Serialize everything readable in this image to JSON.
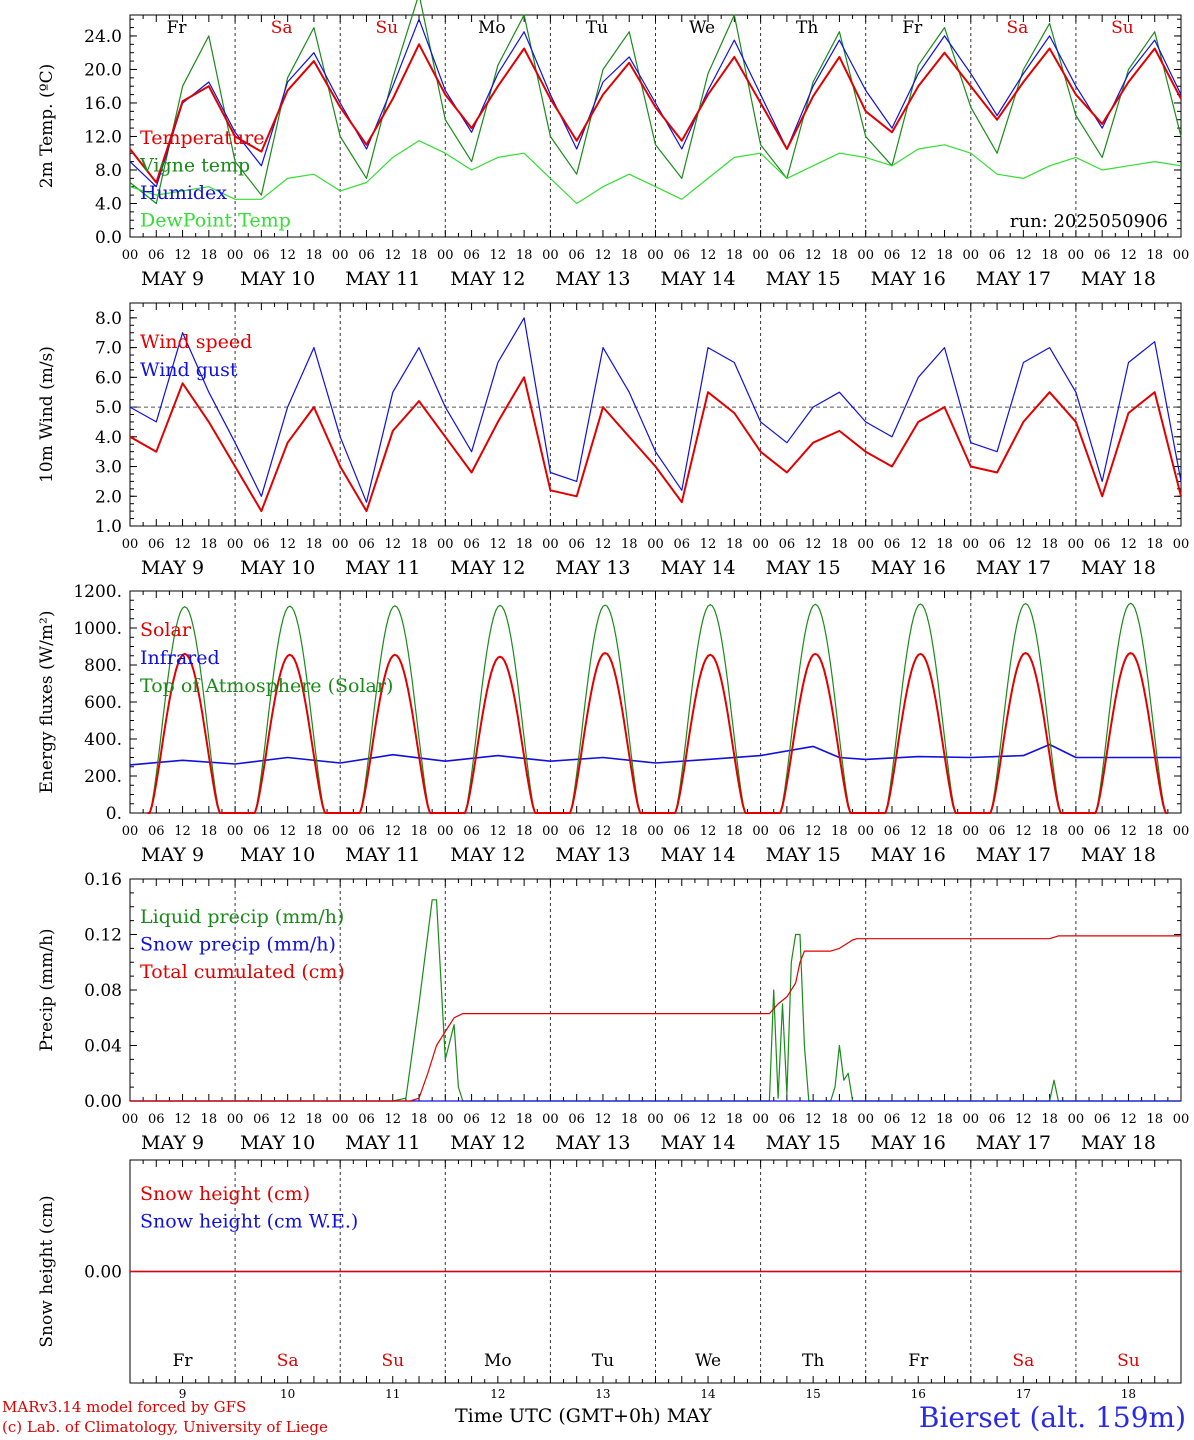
{
  "colors": {
    "red": "#e00000",
    "green": "#1a8a1a",
    "blue": "#1010dd",
    "lightgreen": "#33dd33",
    "weekend": "#e00000",
    "weekday": "#000000"
  },
  "footer": {
    "credit_line1": "MARv3.14 model forced by GFS",
    "credit_line2": "(c) Lab. of Climatology, University of Liege",
    "xaxis_title": "Time UTC (GMT+0h)",
    "xaxis_month": "MAY",
    "station": "Bierset (alt. 159m)"
  },
  "days": [
    {
      "abbr": "Fr",
      "date": "MAY  9",
      "num": "9",
      "weekend": false
    },
    {
      "abbr": "Sa",
      "date": "MAY 10",
      "num": "10",
      "weekend": true
    },
    {
      "abbr": "Su",
      "date": "MAY 11",
      "num": "11",
      "weekend": true
    },
    {
      "abbr": "Mo",
      "date": "MAY 12",
      "num": "12",
      "weekend": false
    },
    {
      "abbr": "Tu",
      "date": "MAY 13",
      "num": "13",
      "weekend": false
    },
    {
      "abbr": "We",
      "date": "MAY 14",
      "num": "14",
      "weekend": false
    },
    {
      "abbr": "Th",
      "date": "MAY 15",
      "num": "15",
      "weekend": false
    },
    {
      "abbr": "Fr",
      "date": "MAY 16",
      "num": "16",
      "weekend": false
    },
    {
      "abbr": "Sa",
      "date": "MAY 17",
      "num": "17",
      "weekend": true
    },
    {
      "abbr": "Su",
      "date": "MAY 18",
      "num": "18",
      "weekend": true
    }
  ],
  "hour_ticks": [
    "00",
    "06",
    "12",
    "18"
  ],
  "last_tick": "00",
  "chart_data": [
    {
      "id": "temp",
      "type": "line",
      "ylabel": "2m Temp. (ºC)",
      "ylim": [
        0,
        26.5
      ],
      "yticks": [
        "0.0",
        "4.0",
        "8.0",
        "12.0",
        "16.0",
        "20.0",
        "24.0"
      ],
      "ytick_values": [
        0,
        4,
        8,
        12,
        16,
        20,
        24
      ],
      "annotation": "run: 2025050906",
      "show_day_abbr_top": true,
      "x_hours": [
        0,
        6,
        12,
        18,
        24,
        30,
        36,
        42,
        48,
        54,
        60,
        66,
        72,
        78,
        84,
        90,
        96,
        102,
        108,
        114,
        120,
        126,
        132,
        138,
        144,
        150,
        156,
        162,
        168,
        174,
        180,
        186,
        192,
        198,
        204,
        210,
        216,
        222,
        228,
        234,
        240
      ],
      "series": [
        {
          "name": "Temperature",
          "color": "red",
          "width": 2,
          "values": [
            10.5,
            6.5,
            16.2,
            18.0,
            12.0,
            10.2,
            17.5,
            21.0,
            15.5,
            11.0,
            16.5,
            23.0,
            17.0,
            13.0,
            18.0,
            22.5,
            16.5,
            11.5,
            17.0,
            20.8,
            15.5,
            11.5,
            17.0,
            21.5,
            16.0,
            10.5,
            16.8,
            21.5,
            15.0,
            12.5,
            18.0,
            22.0,
            18.0,
            14.0,
            18.5,
            22.5,
            17.0,
            13.5,
            18.5,
            22.5,
            16.5
          ]
        },
        {
          "name": "Vigne temp",
          "color": "green",
          "width": 1.2,
          "values": [
            6.5,
            4.0,
            18.0,
            24.0,
            9.0,
            5.0,
            19.0,
            25.0,
            12.0,
            7.0,
            19.0,
            29.0,
            14.0,
            9.0,
            20.5,
            26.5,
            12.0,
            7.5,
            20.0,
            24.5,
            11.0,
            7.0,
            19.5,
            26.5,
            11.0,
            7.0,
            18.5,
            24.5,
            12.0,
            8.5,
            20.5,
            25.0,
            15.5,
            10.0,
            20.0,
            25.5,
            14.5,
            9.5,
            20.0,
            24.5,
            12.0
          ]
        },
        {
          "name": "Humidex",
          "color": "blue",
          "width": 1.2,
          "values": [
            9.0,
            6.0,
            16.0,
            18.5,
            12.5,
            8.5,
            18.5,
            22.0,
            16.0,
            10.5,
            18.0,
            26.0,
            17.5,
            12.5,
            19.5,
            24.5,
            17.0,
            10.5,
            18.5,
            21.5,
            16.0,
            10.5,
            17.5,
            23.5,
            17.0,
            10.5,
            18.0,
            23.5,
            17.5,
            13.0,
            19.5,
            24.0,
            19.5,
            14.5,
            19.5,
            24.0,
            18.0,
            13.0,
            19.5,
            23.5,
            17.0
          ]
        },
        {
          "name": "DewPoint Temp",
          "color": "lightgreen",
          "width": 1.2,
          "values": [
            6.0,
            5.0,
            5.5,
            6.0,
            4.5,
            4.5,
            7.0,
            7.5,
            5.5,
            6.5,
            9.5,
            11.5,
            10.0,
            8.0,
            9.5,
            10.0,
            7.0,
            4.0,
            6.0,
            7.5,
            6.0,
            4.5,
            7.0,
            9.5,
            10.0,
            7.0,
            8.5,
            10.0,
            9.5,
            8.5,
            10.5,
            11.0,
            10.0,
            7.5,
            7.0,
            8.5,
            9.5,
            8.0,
            8.5,
            9.0,
            8.5
          ]
        }
      ]
    },
    {
      "id": "wind",
      "type": "line",
      "ylabel": "10m Wind (m/s)",
      "ylim": [
        1.0,
        8.5
      ],
      "yticks": [
        "1.0",
        "2.0",
        "3.0",
        "4.0",
        "5.0",
        "6.0",
        "7.0",
        "8.0"
      ],
      "ytick_values": [
        1,
        2,
        3,
        4,
        5,
        6,
        7,
        8
      ],
      "reference_line": 5.0,
      "x_hours": [
        0,
        6,
        12,
        18,
        24,
        30,
        36,
        42,
        48,
        54,
        60,
        66,
        72,
        78,
        84,
        90,
        96,
        102,
        108,
        114,
        120,
        126,
        132,
        138,
        144,
        150,
        156,
        162,
        168,
        174,
        180,
        186,
        192,
        198,
        204,
        210,
        216,
        222,
        228,
        234,
        240
      ],
      "series": [
        {
          "name": "Wind speed",
          "color": "red",
          "width": 2,
          "values": [
            4.0,
            3.5,
            5.8,
            4.5,
            3.0,
            1.5,
            3.8,
            5.0,
            3.0,
            1.5,
            4.2,
            5.2,
            4.0,
            2.8,
            4.5,
            6.0,
            2.2,
            2.0,
            5.0,
            4.0,
            3.0,
            1.8,
            5.5,
            4.8,
            3.5,
            2.8,
            3.8,
            4.2,
            3.5,
            3.0,
            4.5,
            5.0,
            3.0,
            2.8,
            4.5,
            5.5,
            4.5,
            2.0,
            4.8,
            5.5,
            2.0
          ]
        },
        {
          "name": "Wind gust",
          "color": "blue",
          "width": 1.2,
          "values": [
            5.0,
            4.5,
            7.5,
            5.5,
            3.8,
            2.0,
            5.0,
            7.0,
            4.0,
            1.8,
            5.5,
            7.0,
            5.0,
            3.5,
            6.5,
            8.0,
            2.8,
            2.5,
            7.0,
            5.5,
            3.5,
            2.2,
            7.0,
            6.5,
            4.5,
            3.8,
            5.0,
            5.5,
            4.5,
            4.0,
            6.0,
            7.0,
            3.8,
            3.5,
            6.5,
            7.0,
            5.5,
            2.5,
            6.5,
            7.2,
            2.5
          ]
        }
      ]
    },
    {
      "id": "flux",
      "type": "line",
      "ylabel": "Energy fluxes (W/m²)",
      "ylim": [
        0,
        1200
      ],
      "yticks": [
        "0.",
        "200.",
        "400.",
        "600.",
        "800.",
        "1000.",
        "1200."
      ],
      "ytick_values": [
        0,
        200,
        400,
        600,
        800,
        1000,
        1200
      ],
      "diurnal": true,
      "series": [
        {
          "name": "Solar",
          "color": "red",
          "width": 2,
          "peak_hour": 12.5,
          "half_width_hours": 8.0,
          "peaks": [
            860,
            855,
            855,
            845,
            865,
            855,
            860,
            860,
            865,
            865
          ]
        },
        {
          "name": "Infrared",
          "color": "blue",
          "width": 1.6,
          "x_hours": [
            0,
            12,
            24,
            36,
            48,
            60,
            72,
            84,
            96,
            108,
            120,
            132,
            144,
            156,
            162,
            168,
            180,
            192,
            204,
            210,
            216,
            228,
            240
          ],
          "values": [
            260,
            285,
            265,
            300,
            270,
            315,
            280,
            310,
            280,
            300,
            270,
            290,
            310,
            360,
            300,
            290,
            305,
            300,
            310,
            370,
            300,
            300,
            300
          ]
        },
        {
          "name": "Top of Atmosphere (Solar)",
          "color": "green",
          "width": 1.2,
          "peak_hour": 12.5,
          "half_width_hours": 8.0,
          "peaks": [
            1115,
            1118,
            1120,
            1122,
            1124,
            1126,
            1128,
            1130,
            1132,
            1134
          ]
        }
      ]
    },
    {
      "id": "precip",
      "type": "line",
      "ylabel": "Precip (mm/h)",
      "ylim": [
        0,
        0.16
      ],
      "yticks": [
        "0.00",
        "0.04",
        "0.08",
        "0.12",
        "0.16"
      ],
      "ytick_values": [
        0,
        0.04,
        0.08,
        0.12,
        0.16
      ],
      "series": [
        {
          "name": "Liquid precip (mm/h)",
          "color": "green",
          "width": 1.2,
          "x_hours": [
            0,
            60,
            63,
            66,
            69,
            70,
            72,
            74,
            75,
            76,
            78,
            80,
            146,
            147,
            148,
            149,
            150,
            151,
            152,
            153,
            154,
            155,
            156,
            160,
            161,
            162,
            163,
            164,
            165,
            166,
            167,
            210,
            211,
            212,
            240
          ],
          "values": [
            0,
            0,
            0.002,
            0.07,
            0.145,
            0.145,
            0.03,
            0.055,
            0.01,
            0,
            0,
            0,
            0,
            0.08,
            0.002,
            0.07,
            0.005,
            0.1,
            0.12,
            0.12,
            0.04,
            0,
            0,
            0,
            0.01,
            0.04,
            0.015,
            0.02,
            0,
            0,
            0,
            0,
            0.015,
            0,
            0
          ]
        },
        {
          "name": "Snow precip (mm/h)",
          "color": "blue",
          "width": 1.2,
          "x_hours": [
            0,
            240
          ],
          "values": [
            0,
            0
          ]
        },
        {
          "name": "Total cumulated (cm)",
          "color": "red",
          "width": 1.2,
          "x_hours": [
            0,
            64,
            66,
            68,
            70,
            72,
            74,
            76,
            80,
            146,
            148,
            150,
            152,
            153,
            154,
            156,
            160,
            162,
            165,
            166,
            210,
            212,
            240
          ],
          "values": [
            0,
            0,
            0.002,
            0.02,
            0.04,
            0.05,
            0.06,
            0.063,
            0.063,
            0.063,
            0.07,
            0.075,
            0.085,
            0.1,
            0.108,
            0.108,
            0.108,
            0.11,
            0.116,
            0.117,
            0.117,
            0.119,
            0.119
          ]
        }
      ]
    },
    {
      "id": "snow",
      "type": "line",
      "ylabel": "Snow height (cm)",
      "ylim": [
        -1,
        1
      ],
      "yticks": [
        "0.00"
      ],
      "ytick_values": [
        0
      ],
      "series": [
        {
          "name": "Snow height (cm)",
          "color": "red",
          "width": 1.4,
          "x_hours": [
            0,
            240
          ],
          "values": [
            0,
            0
          ]
        },
        {
          "name": "Snow height (cm W.E.)",
          "color": "blue",
          "width": 1.2,
          "x_hours": [
            0,
            240
          ],
          "values": [
            0,
            0
          ]
        }
      ]
    }
  ]
}
